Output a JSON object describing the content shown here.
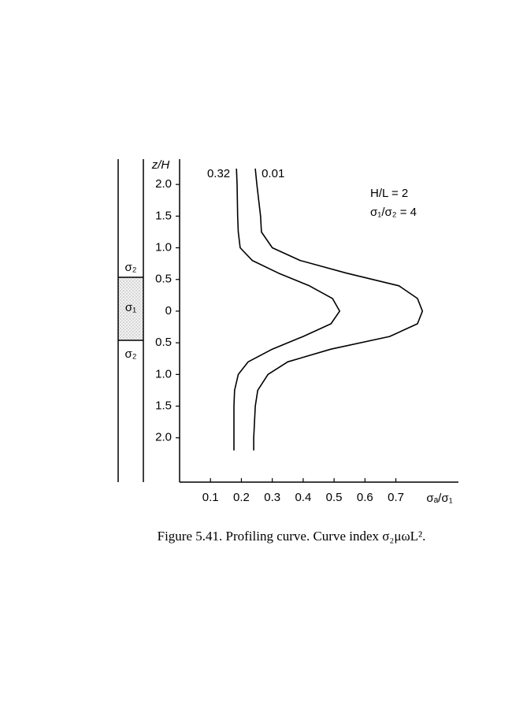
{
  "chart_data": {
    "type": "line",
    "y_label": "z/H",
    "x_label": "σₐ/σ₁",
    "annotations": [
      "H/L = 2",
      "σ₁/σ₂ = 4"
    ],
    "schematic_labels": [
      "σ₂",
      "σ₁",
      "σ₂"
    ],
    "caption": "Figure 5.41. Profiling curve. Curve index σ₂μωL².",
    "xlim": [
      0,
      0.9
    ],
    "xticks": [
      0.1,
      0.2,
      0.3,
      0.4,
      0.5,
      0.6,
      0.7
    ],
    "ylim": [
      -2.7,
      2.4
    ],
    "yticks": [
      {
        "value": 2,
        "label": "2.0"
      },
      1.5,
      {
        "value": 1,
        "label": "1.0"
      },
      0.5,
      0,
      {
        "value": -0.5,
        "label": "0.5"
      },
      {
        "value": -1,
        "label": "1.0"
      },
      {
        "value": -1.5,
        "label": "1.5"
      },
      {
        "value": -2,
        "label": "2.0"
      }
    ],
    "series": [
      {
        "name": "0.32",
        "color": "#000000",
        "z": [
          2.25,
          2.0,
          1.5,
          1.25,
          1.0,
          0.8,
          0.6,
          0.4,
          0.2,
          0,
          -0.2,
          -0.4,
          -0.6,
          -0.8,
          -1.0,
          -1.25,
          -1.5,
          -2.0,
          -2.2
        ],
        "values": [
          0.184,
          0.186,
          0.188,
          0.19,
          0.196,
          0.235,
          0.32,
          0.42,
          0.495,
          0.518,
          0.49,
          0.4,
          0.3,
          0.222,
          0.19,
          0.178,
          0.176,
          0.176,
          0.176
        ]
      },
      {
        "name": "0.01",
        "color": "#000000",
        "z": [
          2.25,
          2.0,
          1.5,
          1.25,
          1.0,
          0.8,
          0.6,
          0.4,
          0.2,
          0,
          -0.2,
          -0.4,
          -0.6,
          -0.8,
          -1.0,
          -1.25,
          -1.5,
          -2.0,
          -2.2
        ],
        "values": [
          0.245,
          0.25,
          0.262,
          0.265,
          0.3,
          0.39,
          0.54,
          0.71,
          0.77,
          0.786,
          0.77,
          0.68,
          0.49,
          0.35,
          0.286,
          0.253,
          0.245,
          0.24,
          0.24
        ]
      }
    ]
  }
}
